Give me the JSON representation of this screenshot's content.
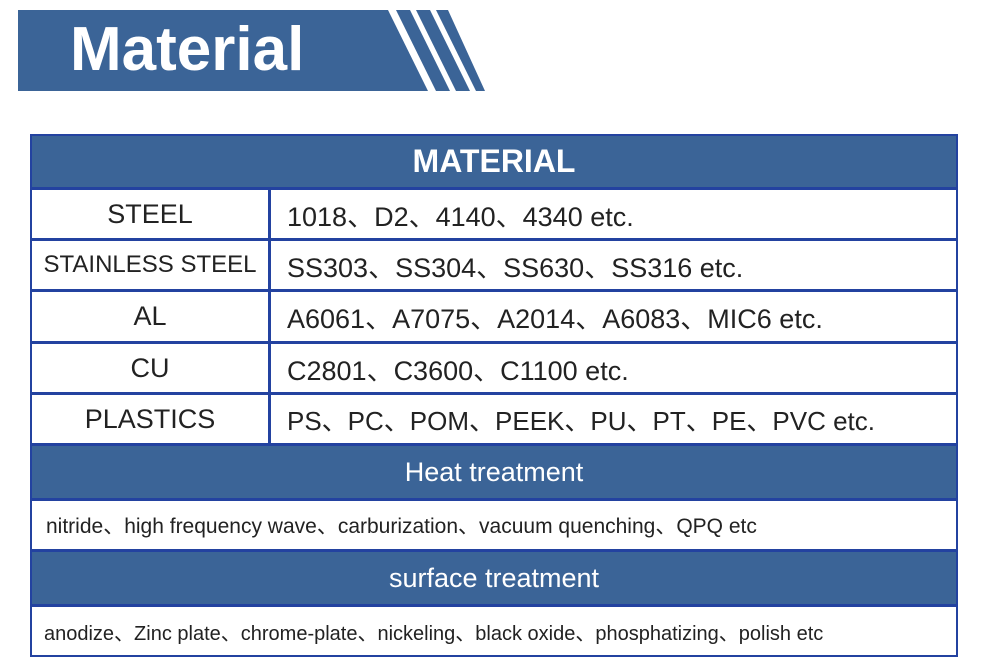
{
  "banner": {
    "title": "Material",
    "color": "#3b6497"
  },
  "table": {
    "header": "MATERIAL",
    "rows": [
      {
        "label": "STEEL",
        "value": "1018、D2、4140、4340 etc."
      },
      {
        "label": "STAINLESS STEEL",
        "value": "SS303、SS304、SS630、SS316 etc."
      },
      {
        "label": "AL",
        "value": "A6061、A7075、A2014、A6083、MIC6 etc."
      },
      {
        "label": "CU",
        "value": "C2801、C3600、C1100 etc."
      },
      {
        "label": "PLASTICS",
        "value": "PS、PC、POM、PEEK、PU、PT、PE、PVC etc."
      }
    ],
    "heat_treatment": {
      "header": "Heat treatment",
      "value": "nitride、high frequency wave、carburization、vacuum quenching、QPQ etc"
    },
    "surface_treatment": {
      "header": "surface treatment",
      "value": "anodize、Zinc plate、chrome-plate、nickeling、black oxide、phosphatizing、polish etc"
    }
  }
}
